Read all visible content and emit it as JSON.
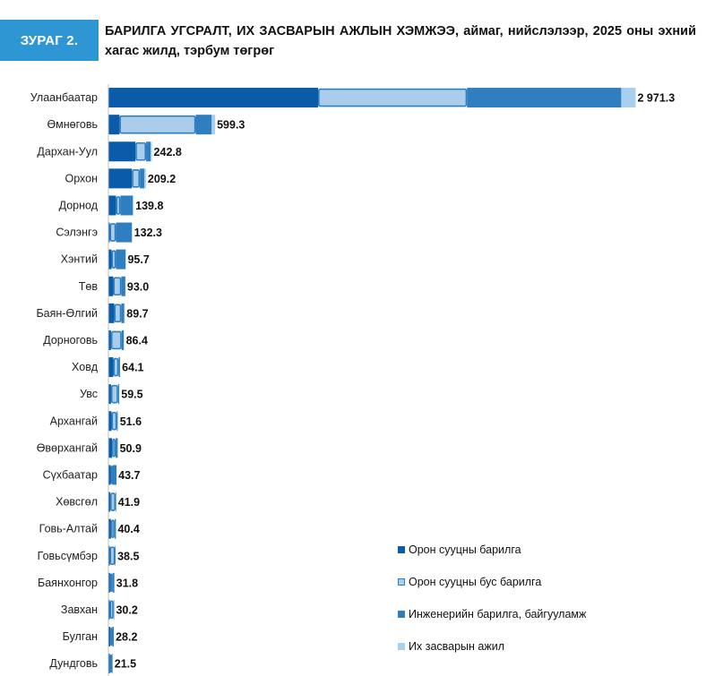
{
  "figure": {
    "label": "ЗУРАГ 2.",
    "title": "БАРИЛГА УГСРАЛТ, ИХ ЗАСВАРЫН АЖЛЫН ХЭМЖЭЭ, аймаг, нийслэлээр, 2025 оны эхний хагас жилд, тэрбум төгрөг"
  },
  "colors": {
    "residential": "#0a5ba8",
    "non_residential": "#a9cdea",
    "non_residential_border": "#2d7fc1",
    "engineering": "#2f7fc0",
    "capital_repair": "#a8d0ee",
    "badge": "#2f96d4"
  },
  "chart_data": {
    "type": "bar",
    "orientation": "horizontal",
    "stacked": true,
    "categories": [
      "Улаанбаатар",
      "Өмнөговь",
      "Дархан-Уул",
      "Орхон",
      "Дорнод",
      "Сэлэнгэ",
      "Хэнтий",
      "Төв",
      "Баян-Өлгий",
      "Дорноговь",
      "Ховд",
      "Увс",
      "Архангай",
      "Өвөрхангай",
      "Сүхбаатар",
      "Хөвсгөл",
      "Говь-Алтай",
      "Говьсүмбэр",
      "Баянхонгор",
      "Завхан",
      "Булган",
      "Дундговь"
    ],
    "totals": [
      "2 971.3",
      "599.3",
      "242.8",
      "209.2",
      "139.8",
      "132.3",
      "95.7",
      "93.0",
      "89.7",
      "86.4",
      "64.1",
      "59.5",
      "51.6",
      "50.9",
      "43.7",
      "41.9",
      "40.4",
      "38.5",
      "31.8",
      "30.2",
      "28.2",
      "21.5"
    ],
    "series": [
      {
        "name": "Орон сууцны барилга",
        "values": [
          1180,
          60,
          150,
          130,
          40,
          5,
          15,
          25,
          30,
          12,
          25,
          12,
          15,
          18,
          10,
          8,
          12,
          5,
          7,
          5,
          8,
          6
        ]
      },
      {
        "name": "Орон сууцны бус барилга",
        "values": [
          840,
          430,
          60,
          45,
          25,
          35,
          25,
          45,
          40,
          60,
          30,
          40,
          30,
          20,
          10,
          30,
          20,
          30,
          15,
          22,
          12,
          12
        ]
      },
      {
        "name": "Инженерийн барилга, байгууламж",
        "values": [
          870,
          90,
          25,
          25,
          70,
          90,
          55,
          23,
          17,
          12,
          8,
          6,
          5,
          12,
          23,
          3,
          8,
          3,
          9,
          3,
          8,
          3
        ]
      },
      {
        "name": "Их засварын ажил",
        "values": [
          81.3,
          19.3,
          7.8,
          9.2,
          4.8,
          2.3,
          0.7,
          0,
          2.7,
          2.4,
          1.1,
          1.5,
          1.6,
          0.9,
          0.7,
          0.9,
          0.4,
          0.5,
          0.8,
          0.2,
          0.2,
          0.5
        ]
      }
    ],
    "legend_position": "bottom-right",
    "grid": false
  }
}
